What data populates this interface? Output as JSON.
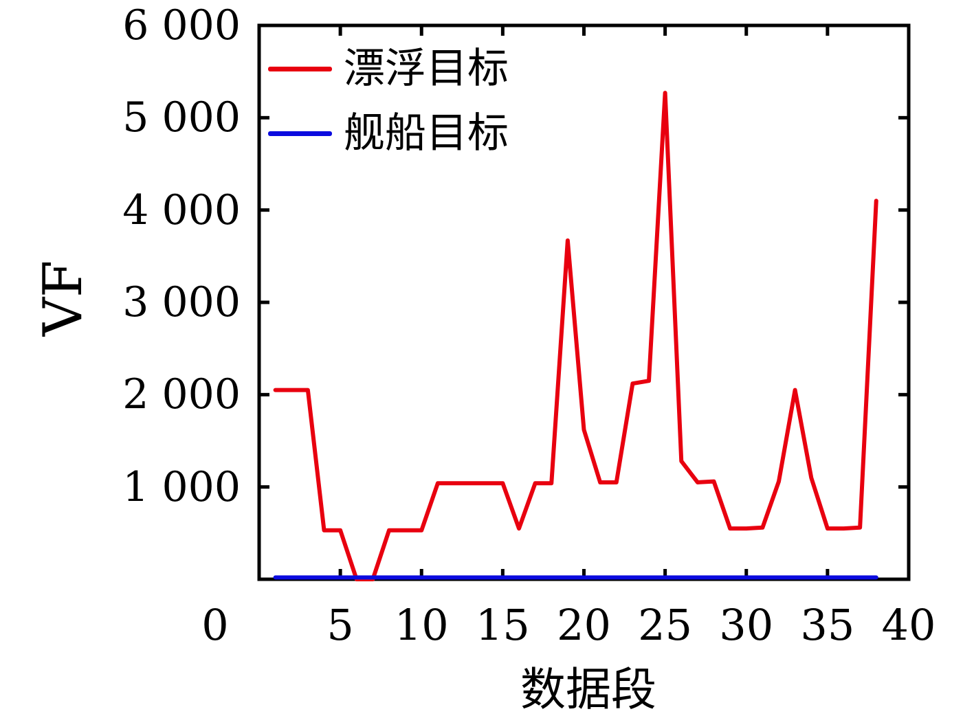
{
  "chart_data": {
    "type": "line",
    "title": "",
    "xlabel": "数据段",
    "ylabel": "VF",
    "xlim": [
      0,
      40
    ],
    "ylim": [
      0,
      6000
    ],
    "grid": false,
    "legend_position": "top-left-inside",
    "axis_color": "#000000",
    "x_ticks": [
      0,
      5,
      10,
      15,
      20,
      25,
      30,
      35,
      40
    ],
    "x_tick_labels": [
      "0",
      "5",
      "10",
      "15",
      "20",
      "25",
      "30",
      "35",
      "40"
    ],
    "y_ticks": [
      1000,
      2000,
      3000,
      4000,
      5000,
      6000
    ],
    "y_tick_labels": [
      "1 000",
      "2 000",
      "3 000",
      "4 000",
      "5 000",
      "6 000"
    ],
    "x": [
      1,
      2,
      3,
      4,
      5,
      6,
      7,
      8,
      9,
      10,
      11,
      12,
      13,
      14,
      15,
      16,
      17,
      18,
      19,
      20,
      21,
      22,
      23,
      24,
      25,
      26,
      27,
      28,
      29,
      30,
      31,
      32,
      33,
      34,
      35,
      36,
      37,
      38
    ],
    "series": [
      {
        "name": "漂浮目标",
        "color": "#e8000f",
        "values": [
          2050,
          2050,
          2050,
          530,
          530,
          0,
          0,
          530,
          530,
          530,
          1040,
          1040,
          1040,
          1040,
          1040,
          550,
          1040,
          1040,
          3670,
          1620,
          1050,
          1050,
          2120,
          2150,
          5270,
          1280,
          1050,
          1060,
          550,
          550,
          560,
          1060,
          2050,
          1100,
          550,
          550,
          560,
          4100
        ]
      },
      {
        "name": "舰船目标",
        "color": "#0b0bdf",
        "values": [
          20,
          20,
          20,
          20,
          20,
          20,
          20,
          20,
          20,
          20,
          20,
          20,
          20,
          20,
          20,
          20,
          20,
          20,
          20,
          20,
          20,
          20,
          20,
          20,
          20,
          20,
          20,
          20,
          20,
          20,
          20,
          20,
          20,
          20,
          20,
          20,
          20,
          20
        ]
      }
    ]
  }
}
